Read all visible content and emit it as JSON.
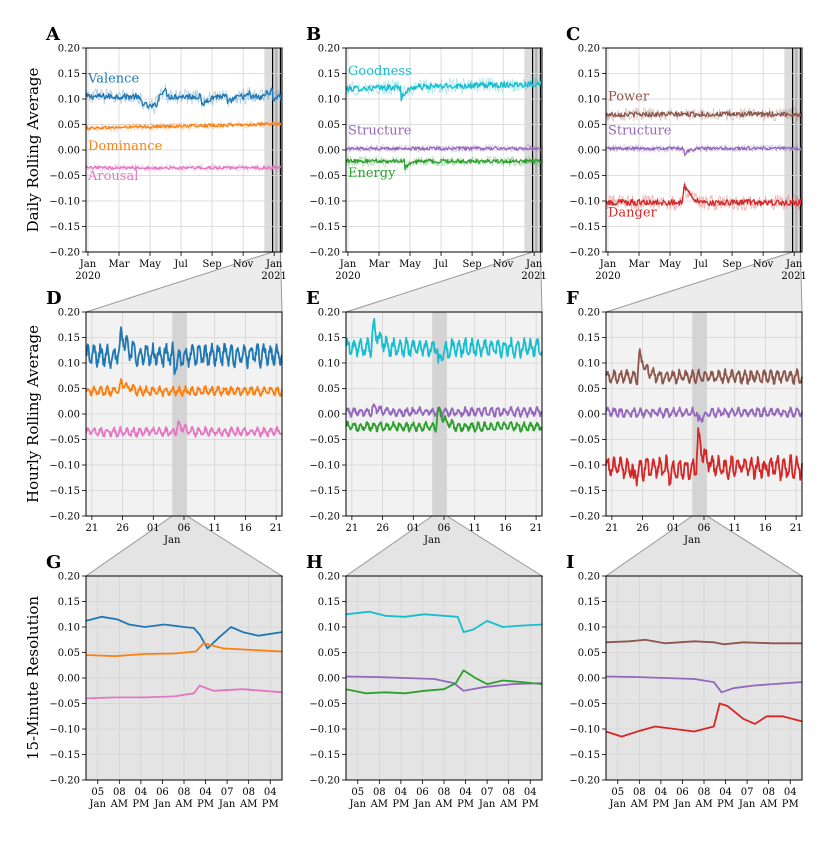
{
  "row_labels": [
    "Daily Rolling Average",
    "Hourly Rolling Average",
    "15-Minute Resolution"
  ],
  "colors": {
    "valence": "#1f77b4",
    "dominance": "#ff7f0e",
    "arousal": "#e377c2",
    "goodness": "#17becf",
    "structure": "#9467bd",
    "energy": "#2ca02c",
    "power": "#8c564b",
    "danger": "#d62728",
    "zoom_fill": "#e4e4e4",
    "grid": "#d4d4d4"
  },
  "chart_data": [
    {
      "id": "A",
      "panel_label": "A",
      "type": "line",
      "row": 0,
      "col": 0,
      "ylim": [
        -0.2,
        0.2
      ],
      "yticks": [
        "0.20",
        "0.15",
        "0.10",
        "0.05",
        "0.00",
        "−0.05",
        "−0.10",
        "−0.15",
        "−0.20"
      ],
      "xticks": [
        [
          "Jan",
          "2020"
        ],
        [
          "Mar",
          ""
        ],
        [
          "May",
          ""
        ],
        [
          "Jul",
          ""
        ],
        [
          "Sep",
          ""
        ],
        [
          "Nov",
          ""
        ],
        [
          "Jan",
          "2021"
        ]
      ],
      "xlabel": "",
      "series": [
        {
          "name": "Valence",
          "key": "valence",
          "base": 0.105,
          "noise": 0.006,
          "legend": "Valence",
          "events": [
            [
              0.26,
              0.4,
              -0.02
            ],
            [
              0.36,
              0.42,
              0.015
            ],
            [
              0.82,
              0.88,
              0.01
            ],
            [
              0.9,
              1.0,
              0.01
            ]
          ],
          "dips": [
            [
              0.59,
              -0.022
            ],
            [
              0.72,
              -0.018
            ],
            [
              0.84,
              -0.018
            ],
            [
              0.95,
              -0.02
            ]
          ]
        },
        {
          "name": "Dominance",
          "key": "dominance",
          "base": 0.043,
          "noise": 0.003,
          "legend": "Dominance",
          "trend": 0.008
        },
        {
          "name": "Arousal",
          "key": "arousal",
          "base": -0.035,
          "noise": 0.003,
          "legend": "Arousal"
        }
      ]
    },
    {
      "id": "B",
      "panel_label": "B",
      "type": "line",
      "row": 0,
      "col": 1,
      "ylim": [
        -0.2,
        0.2
      ],
      "yticks": [
        "0.20",
        "0.15",
        "0.10",
        "0.05",
        "0.00",
        "−0.05",
        "−0.10",
        "−0.15",
        "−0.20"
      ],
      "xticks": [
        [
          "Jan",
          "2020"
        ],
        [
          "Mar",
          ""
        ],
        [
          "May",
          ""
        ],
        [
          "Jul",
          ""
        ],
        [
          "Sep",
          ""
        ],
        [
          "Nov",
          ""
        ],
        [
          "Jan",
          "2021"
        ]
      ],
      "xlabel": "",
      "series": [
        {
          "name": "Goodness",
          "key": "goodness",
          "base": 0.12,
          "noise": 0.006,
          "legend": "Goodness",
          "trend": 0.01,
          "dips": [
            [
              0.28,
              -0.025
            ]
          ]
        },
        {
          "name": "Structure",
          "key": "structure",
          "base": 0.003,
          "noise": 0.003,
          "legend": "Structure"
        },
        {
          "name": "Energy",
          "key": "energy",
          "base": -0.022,
          "noise": 0.004,
          "legend": "Energy",
          "dips": [
            [
              0.3,
              -0.015
            ]
          ]
        }
      ]
    },
    {
      "id": "C",
      "panel_label": "C",
      "type": "line",
      "row": 0,
      "col": 2,
      "ylim": [
        -0.2,
        0.2
      ],
      "yticks": [
        "0.20",
        "0.15",
        "0.10",
        "0.05",
        "0.00",
        "−0.05",
        "−0.10",
        "−0.15",
        "−0.20"
      ],
      "xticks": [
        [
          "Jan",
          "2020"
        ],
        [
          "Mar",
          ""
        ],
        [
          "May",
          ""
        ],
        [
          "Jul",
          ""
        ],
        [
          "Sep",
          ""
        ],
        [
          "Nov",
          ""
        ],
        [
          "Jan",
          "2021"
        ]
      ],
      "xlabel": "",
      "series": [
        {
          "name": "Power",
          "key": "power",
          "base": 0.07,
          "noise": 0.005,
          "legend": "Power"
        },
        {
          "name": "Structure",
          "key": "structure",
          "base": 0.003,
          "noise": 0.003,
          "legend": "Structure",
          "dips": [
            [
              0.4,
              -0.012
            ]
          ]
        },
        {
          "name": "Danger",
          "key": "danger",
          "base": -0.103,
          "noise": 0.006,
          "legend": "Danger",
          "spikes": [
            [
              0.4,
              0.035
            ]
          ]
        }
      ]
    },
    {
      "id": "D",
      "panel_label": "D",
      "type": "line",
      "row": 1,
      "col": 0,
      "ylim": [
        -0.2,
        0.2
      ],
      "yticks": [
        "0.20",
        "0.15",
        "0.10",
        "0.05",
        "0.00",
        "−0.05",
        "−0.10",
        "−0.15",
        "−0.20"
      ],
      "xticks": [
        [
          "21",
          ""
        ],
        [
          "26",
          ""
        ],
        [
          "01",
          ""
        ],
        [
          "06",
          ""
        ],
        [
          "11",
          ""
        ],
        [
          "16",
          ""
        ],
        [
          "21",
          ""
        ]
      ],
      "xlabel": "Jan",
      "series": [
        {
          "name": "Valence",
          "key": "valence",
          "base": 0.115,
          "noise": 0.01,
          "legend": "",
          "spikes": [
            [
              0.18,
              0.045
            ]
          ],
          "dips": [
            [
              0.45,
              -0.03
            ]
          ]
        },
        {
          "name": "Dominance",
          "key": "dominance",
          "base": 0.045,
          "noise": 0.004,
          "legend": "",
          "spikes": [
            [
              0.18,
              0.018
            ]
          ]
        },
        {
          "name": "Arousal",
          "key": "arousal",
          "base": -0.035,
          "noise": 0.004,
          "legend": "",
          "spikes": [
            [
              0.47,
              0.015
            ]
          ]
        }
      ]
    },
    {
      "id": "E",
      "panel_label": "E",
      "type": "line",
      "row": 1,
      "col": 1,
      "ylim": [
        -0.2,
        0.2
      ],
      "yticks": [
        "0.20",
        "0.15",
        "0.10",
        "0.05",
        "0.00",
        "−0.05",
        "−0.10",
        "−0.15",
        "−0.20"
      ],
      "xticks": [
        [
          "21",
          ""
        ],
        [
          "26",
          ""
        ],
        [
          "01",
          ""
        ],
        [
          "06",
          ""
        ],
        [
          "11",
          ""
        ],
        [
          "16",
          ""
        ],
        [
          "21",
          ""
        ]
      ],
      "xlabel": "Jan",
      "series": [
        {
          "name": "Goodness",
          "key": "goodness",
          "base": 0.13,
          "noise": 0.008,
          "legend": "",
          "spikes": [
            [
              0.14,
              0.045
            ]
          ],
          "dips": [
            [
              0.47,
              -0.035
            ]
          ]
        },
        {
          "name": "Structure",
          "key": "structure",
          "base": 0.004,
          "noise": 0.004,
          "legend": "",
          "spikes": [
            [
              0.14,
              0.012
            ]
          ]
        },
        {
          "name": "Energy",
          "key": "energy",
          "base": -0.025,
          "noise": 0.004,
          "legend": "",
          "spikes": [
            [
              0.47,
              0.035
            ]
          ]
        }
      ]
    },
    {
      "id": "F",
      "panel_label": "F",
      "type": "line",
      "row": 1,
      "col": 2,
      "ylim": [
        -0.2,
        0.2
      ],
      "yticks": [
        "0.20",
        "0.15",
        "0.10",
        "0.05",
        "0.00",
        "−0.05",
        "−0.10",
        "−0.15",
        "−0.20"
      ],
      "xticks": [
        [
          "21",
          ""
        ],
        [
          "26",
          ""
        ],
        [
          "01",
          ""
        ],
        [
          "06",
          ""
        ],
        [
          "11",
          ""
        ],
        [
          "16",
          ""
        ],
        [
          "21",
          ""
        ]
      ],
      "xlabel": "Jan",
      "series": [
        {
          "name": "Power",
          "key": "power",
          "base": 0.073,
          "noise": 0.006,
          "legend": "",
          "spikes": [
            [
              0.17,
              0.045
            ]
          ]
        },
        {
          "name": "Structure",
          "key": "structure",
          "base": 0.003,
          "noise": 0.004,
          "legend": "",
          "dips": [
            [
              0.47,
              -0.02
            ]
          ]
        },
        {
          "name": "Danger",
          "key": "danger",
          "base": -0.105,
          "noise": 0.01,
          "legend": "",
          "dips": [
            [
              0.14,
              -0.03
            ],
            [
              0.32,
              -0.025
            ]
          ],
          "spikes": [
            [
              0.47,
              0.06
            ]
          ]
        }
      ]
    },
    {
      "id": "G",
      "panel_label": "G",
      "type": "line",
      "row": 2,
      "col": 0,
      "ylim": [
        -0.2,
        0.2
      ],
      "yticks": [
        "0.20",
        "0.15",
        "0.10",
        "0.05",
        "0.00",
        "−0.05",
        "−0.10",
        "−0.15",
        "−0.20"
      ],
      "xticks": [
        [
          "05",
          "Jan"
        ],
        [
          "08",
          "AM"
        ],
        [
          "04",
          "PM"
        ],
        [
          "06",
          "Jan"
        ],
        [
          "08",
          "AM"
        ],
        [
          "04",
          "PM"
        ],
        [
          "07",
          "Jan"
        ],
        [
          "08",
          "AM"
        ],
        [
          "04",
          "PM"
        ]
      ],
      "xlabel": "",
      "series": [
        {
          "name": "Valence",
          "key": "valence",
          "x": [
            0,
            0.08,
            0.16,
            0.22,
            0.3,
            0.4,
            0.5,
            0.55,
            0.58,
            0.62,
            0.68,
            0.74,
            0.8,
            0.88,
            1.0
          ],
          "y": [
            0.112,
            0.12,
            0.115,
            0.105,
            0.1,
            0.105,
            0.1,
            0.098,
            0.085,
            0.058,
            0.08,
            0.1,
            0.09,
            0.083,
            0.09
          ]
        },
        {
          "name": "Dominance",
          "key": "dominance",
          "x": [
            0,
            0.15,
            0.3,
            0.45,
            0.56,
            0.6,
            0.7,
            0.85,
            1.0
          ],
          "y": [
            0.045,
            0.043,
            0.047,
            0.048,
            0.052,
            0.068,
            0.058,
            0.055,
            0.052
          ]
        },
        {
          "name": "Arousal",
          "key": "arousal",
          "x": [
            0,
            0.15,
            0.3,
            0.45,
            0.55,
            0.58,
            0.65,
            0.8,
            1.0
          ],
          "y": [
            -0.04,
            -0.038,
            -0.038,
            -0.036,
            -0.03,
            -0.015,
            -0.025,
            -0.022,
            -0.028
          ]
        }
      ]
    },
    {
      "id": "H",
      "panel_label": "H",
      "type": "line",
      "row": 2,
      "col": 1,
      "ylim": [
        -0.2,
        0.2
      ],
      "yticks": [
        "0.20",
        "0.15",
        "0.10",
        "0.05",
        "0.00",
        "−0.05",
        "−0.10",
        "−0.15",
        "−0.20"
      ],
      "xticks": [
        [
          "05",
          "Jan"
        ],
        [
          "08",
          "AM"
        ],
        [
          "04",
          "PM"
        ],
        [
          "06",
          "Jan"
        ],
        [
          "08",
          "AM"
        ],
        [
          "04",
          "PM"
        ],
        [
          "07",
          "Jan"
        ],
        [
          "08",
          "AM"
        ],
        [
          "04",
          "PM"
        ]
      ],
      "xlabel": "",
      "series": [
        {
          "name": "Goodness",
          "key": "goodness",
          "x": [
            0,
            0.12,
            0.2,
            0.3,
            0.4,
            0.5,
            0.57,
            0.6,
            0.65,
            0.72,
            0.8,
            0.9,
            1.0
          ],
          "y": [
            0.125,
            0.13,
            0.122,
            0.12,
            0.125,
            0.122,
            0.12,
            0.09,
            0.095,
            0.112,
            0.1,
            0.103,
            0.105
          ]
        },
        {
          "name": "Structure",
          "key": "structure",
          "x": [
            0,
            0.15,
            0.3,
            0.45,
            0.55,
            0.6,
            0.7,
            0.85,
            1.0
          ],
          "y": [
            0.003,
            0.002,
            0.0,
            -0.002,
            -0.01,
            -0.025,
            -0.018,
            -0.012,
            -0.01
          ]
        },
        {
          "name": "Energy",
          "key": "energy",
          "x": [
            0,
            0.1,
            0.2,
            0.3,
            0.4,
            0.5,
            0.56,
            0.6,
            0.66,
            0.72,
            0.8,
            0.9,
            1.0
          ],
          "y": [
            -0.022,
            -0.03,
            -0.028,
            -0.03,
            -0.025,
            -0.022,
            -0.01,
            0.015,
            0.0,
            -0.012,
            -0.005,
            -0.008,
            -0.012
          ]
        }
      ]
    },
    {
      "id": "I",
      "panel_label": "I",
      "type": "line",
      "row": 2,
      "col": 2,
      "ylim": [
        -0.2,
        0.2
      ],
      "yticks": [
        "0.20",
        "0.15",
        "0.10",
        "0.05",
        "0.00",
        "−0.05",
        "−0.10",
        "−0.15",
        "−0.20"
      ],
      "xticks": [
        [
          "05",
          "Jan"
        ],
        [
          "08",
          "AM"
        ],
        [
          "04",
          "PM"
        ],
        [
          "06",
          "Jan"
        ],
        [
          "08",
          "AM"
        ],
        [
          "04",
          "PM"
        ],
        [
          "07",
          "Jan"
        ],
        [
          "08",
          "AM"
        ],
        [
          "04",
          "PM"
        ]
      ],
      "xlabel": "",
      "series": [
        {
          "name": "Power",
          "key": "power",
          "x": [
            0,
            0.12,
            0.2,
            0.3,
            0.45,
            0.55,
            0.6,
            0.7,
            0.85,
            1.0
          ],
          "y": [
            0.07,
            0.072,
            0.075,
            0.068,
            0.072,
            0.07,
            0.066,
            0.07,
            0.068,
            0.068
          ]
        },
        {
          "name": "Structure",
          "key": "structure",
          "x": [
            0,
            0.15,
            0.3,
            0.45,
            0.55,
            0.59,
            0.65,
            0.75,
            0.85,
            1.0
          ],
          "y": [
            0.003,
            0.002,
            0.0,
            -0.002,
            -0.008,
            -0.028,
            -0.02,
            -0.015,
            -0.012,
            -0.008
          ]
        },
        {
          "name": "Danger",
          "key": "danger",
          "x": [
            0,
            0.08,
            0.16,
            0.25,
            0.35,
            0.45,
            0.55,
            0.58,
            0.62,
            0.7,
            0.76,
            0.82,
            0.9,
            1.0
          ],
          "y": [
            -0.105,
            -0.115,
            -0.105,
            -0.095,
            -0.1,
            -0.105,
            -0.095,
            -0.05,
            -0.055,
            -0.08,
            -0.09,
            -0.075,
            -0.075,
            -0.085
          ]
        }
      ]
    }
  ]
}
